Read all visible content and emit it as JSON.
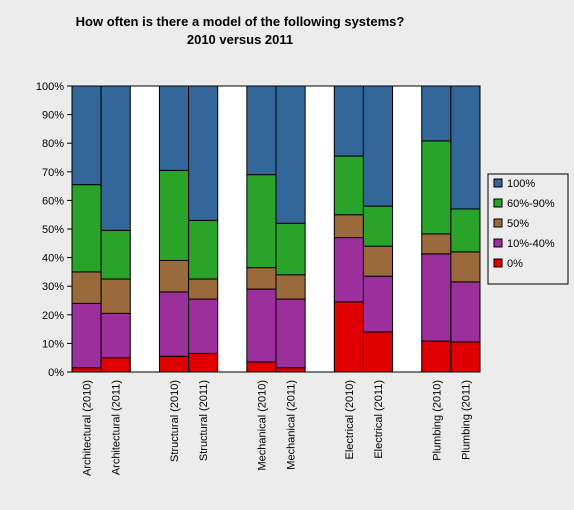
{
  "chart_data": {
    "type": "bar",
    "stacked": true,
    "normalized": true,
    "title": "How often is there a model of the following systems?",
    "subtitle": "2010 versus 2011",
    "xlabel": "",
    "ylabel": "",
    "ylim": [
      0,
      100
    ],
    "y_ticks": [
      "0%",
      "10%",
      "20%",
      "30%",
      "40%",
      "50%",
      "60%",
      "70%",
      "80%",
      "90%",
      "100%"
    ],
    "grid": false,
    "legend_position": "right",
    "categories": [
      "Architectural (2010)",
      "Architectural (2011)",
      "Structural (2010)",
      "Structural (2011)",
      "Mechanical (2010)",
      "Mechanical (2011)",
      "Electrical (2010)",
      "Electrical (2011)",
      "Plumbing (2010)",
      "Plumbing (2011)"
    ],
    "groups": [
      [
        0,
        1
      ],
      [
        2,
        3
      ],
      [
        4,
        5
      ],
      [
        6,
        7
      ],
      [
        8,
        9
      ]
    ],
    "series": [
      {
        "name": "0%",
        "color": "#e00000",
        "values": [
          1.5,
          5,
          5.5,
          6.5,
          3.5,
          1.5,
          24.5,
          14,
          10.8,
          10.5
        ]
      },
      {
        "name": "10%-40%",
        "color": "#9b2f9b",
        "values": [
          22.5,
          15.5,
          22.5,
          19,
          25.5,
          24,
          22.5,
          19.5,
          30.5,
          21
        ]
      },
      {
        "name": "50%",
        "color": "#9a6a3c",
        "values": [
          11,
          12,
          11,
          7,
          7.5,
          8.5,
          8,
          10.5,
          7,
          10.5
        ]
      },
      {
        "name": "60%-90%",
        "color": "#29a329",
        "values": [
          30.5,
          17,
          31.5,
          20.5,
          32.5,
          18,
          20.5,
          14,
          32.5,
          15
        ]
      },
      {
        "name": "100%",
        "color": "#336699",
        "values": [
          34.5,
          50.5,
          29.5,
          47,
          31,
          48,
          24.5,
          42,
          19.2,
          43
        ]
      }
    ]
  }
}
